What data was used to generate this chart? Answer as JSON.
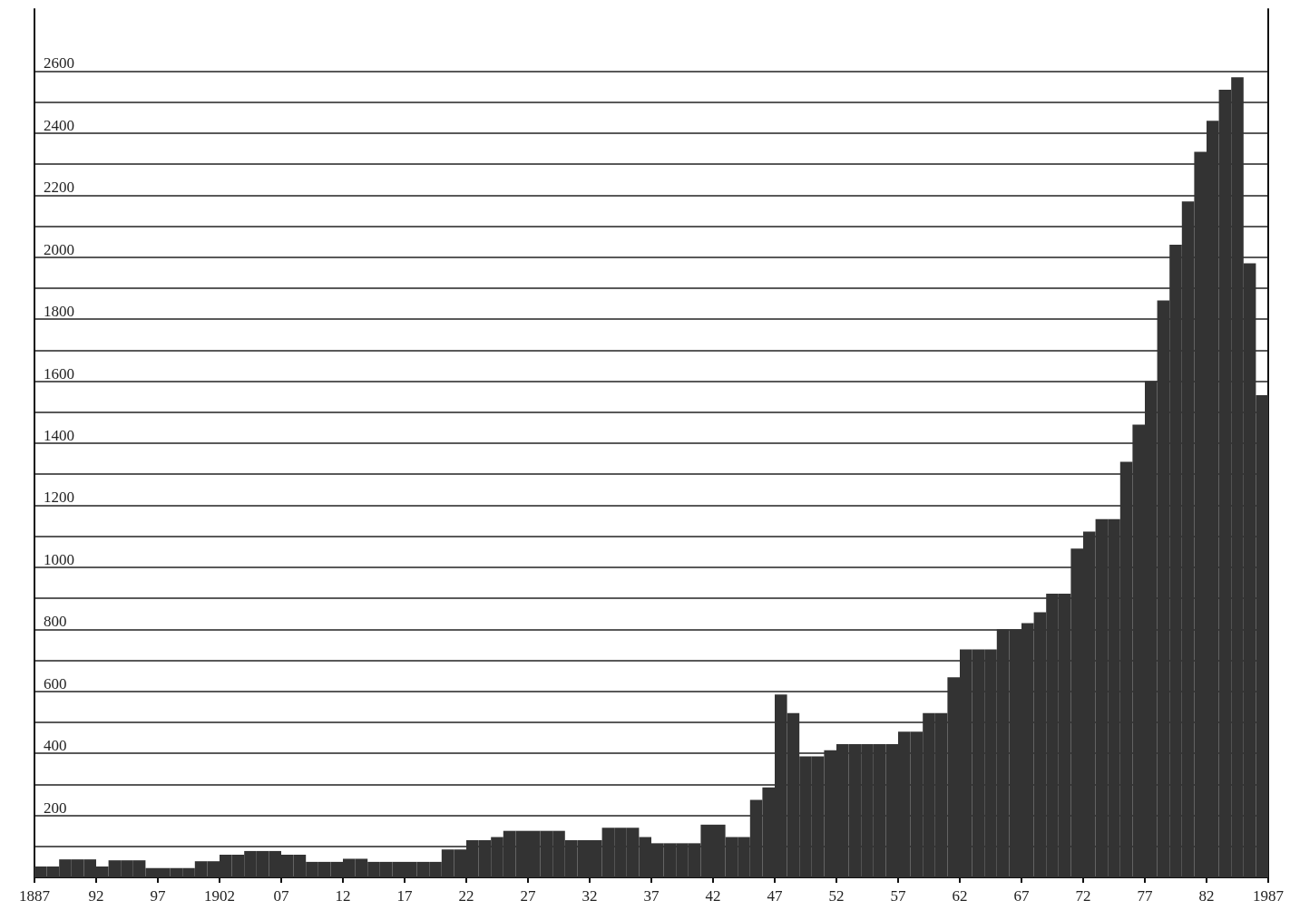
{
  "chart_data": {
    "type": "histogram",
    "bins": [
      1887,
      1888,
      1889,
      1890,
      1891,
      1892,
      1893,
      1894,
      1895,
      1896,
      1897,
      1898,
      1899,
      1900,
      1901,
      1902,
      1903,
      1904,
      1905,
      1906,
      1907,
      1908,
      1909,
      1910,
      1911,
      1912,
      1913,
      1914,
      1915,
      1916,
      1917,
      1918,
      1919,
      1920,
      1921,
      1922,
      1923,
      1924,
      1925,
      1926,
      1927,
      1928,
      1929,
      1930,
      1931,
      1932,
      1933,
      1934,
      1935,
      1936,
      1937,
      1938,
      1939,
      1940,
      1941,
      1942,
      1943,
      1944,
      1945,
      1946,
      1947,
      1948,
      1949,
      1950,
      1951,
      1952,
      1953,
      1954,
      1955,
      1956,
      1957,
      1958,
      1959,
      1960,
      1961,
      1962,
      1963,
      1964,
      1965,
      1966,
      1967,
      1968,
      1969,
      1970,
      1971,
      1972,
      1973,
      1974,
      1975,
      1976,
      1977,
      1978,
      1979,
      1980,
      1981,
      1982,
      1983,
      1984,
      1985,
      1986,
      1987
    ],
    "values": [
      35,
      35,
      58,
      58,
      58,
      35,
      55,
      55,
      55,
      30,
      30,
      30,
      30,
      52,
      52,
      73,
      73,
      85,
      85,
      85,
      73,
      73,
      50,
      50,
      50,
      60,
      60,
      50,
      50,
      50,
      50,
      50,
      50,
      90,
      90,
      120,
      120,
      130,
      150,
      150,
      150,
      150,
      150,
      120,
      120,
      120,
      160,
      160,
      160,
      130,
      110,
      110,
      110,
      110,
      170,
      170,
      130,
      130,
      250,
      290,
      590,
      530,
      390,
      390,
      410,
      430,
      430,
      430,
      430,
      430,
      470,
      470,
      530,
      530,
      645,
      735,
      735,
      735,
      800,
      800,
      820,
      855,
      915,
      915,
      1060,
      1115,
      1155,
      1155,
      1340,
      1460,
      1600,
      1860,
      2040,
      2180,
      2340,
      2440,
      2540,
      2580,
      1980,
      1555
    ],
    "color": "#333333",
    "xlim": [
      1887,
      1987
    ],
    "xticks": [
      {
        "value": 1887,
        "label": "1887"
      },
      {
        "value": 1892,
        "label": "92"
      },
      {
        "value": 1897,
        "label": "97"
      },
      {
        "value": 1902,
        "label": "1902"
      },
      {
        "value": 1907,
        "label": "07"
      },
      {
        "value": 1912,
        "label": "12"
      },
      {
        "value": 1917,
        "label": "17"
      },
      {
        "value": 1922,
        "label": "22"
      },
      {
        "value": 1927,
        "label": "27"
      },
      {
        "value": 1932,
        "label": "32"
      },
      {
        "value": 1937,
        "label": "37"
      },
      {
        "value": 1942,
        "label": "42"
      },
      {
        "value": 1947,
        "label": "47"
      },
      {
        "value": 1952,
        "label": "52"
      },
      {
        "value": 1957,
        "label": "57"
      },
      {
        "value": 1962,
        "label": "62"
      },
      {
        "value": 1967,
        "label": "67"
      },
      {
        "value": 1972,
        "label": "72"
      },
      {
        "value": 1977,
        "label": "77"
      },
      {
        "value": 1982,
        "label": "82"
      },
      {
        "value": 1987,
        "label": "1987"
      }
    ],
    "ylim": [
      0,
      2800
    ],
    "yticks": [
      {
        "value": 100,
        "label": null
      },
      200,
      {
        "value": 300,
        "label": null
      },
      400,
      {
        "value": 500,
        "label": null
      },
      600,
      {
        "value": 700,
        "label": null
      },
      800,
      {
        "value": 900,
        "label": null
      },
      1000,
      {
        "value": 1100,
        "label": null
      },
      1200,
      {
        "value": 1300,
        "label": null
      },
      1400,
      {
        "value": 1500,
        "label": null
      },
      1600,
      {
        "value": 1700,
        "label": null
      },
      1800,
      {
        "value": 1900,
        "label": null
      },
      2000,
      {
        "value": 2100,
        "label": null
      },
      2200,
      {
        "value": 2300,
        "label": null
      },
      2400,
      {
        "value": 2500,
        "label": null
      },
      2600
    ],
    "grid": "y"
  }
}
